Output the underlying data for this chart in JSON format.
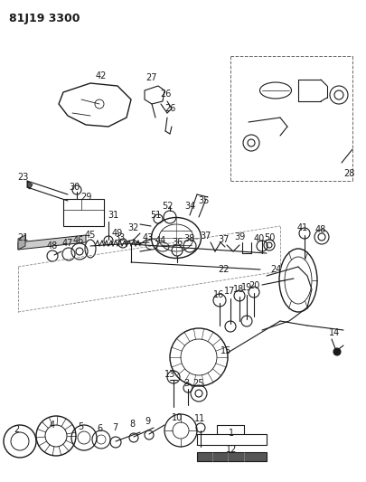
{
  "title": "81J19 3300",
  "bg_color": "#ffffff",
  "line_color": "#1a1a1a",
  "figsize": [
    4.06,
    5.33
  ],
  "dpi": 100
}
